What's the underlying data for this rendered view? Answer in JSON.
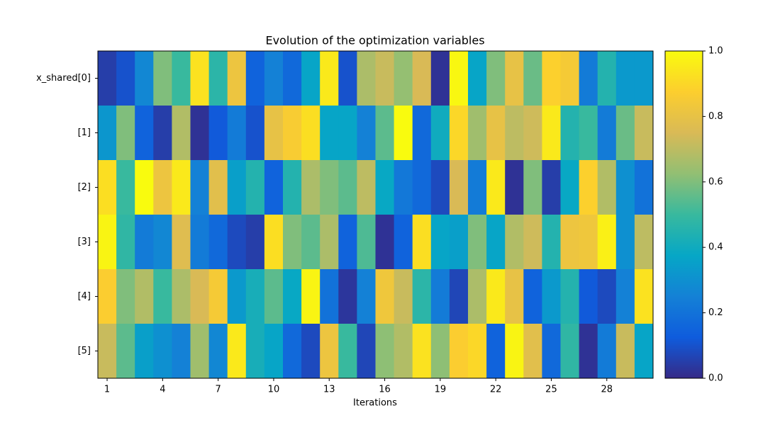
{
  "chart_data": {
    "type": "heatmap",
    "title": "Evolution of the optimization variables",
    "x_label": "Iterations",
    "x": [
      1,
      2,
      3,
      4,
      5,
      6,
      7,
      8,
      9,
      10,
      11,
      12,
      13,
      14,
      15,
      16,
      17,
      18,
      19,
      20,
      21,
      22,
      23,
      24,
      25,
      26,
      27,
      28,
      29,
      30
    ],
    "xlim": [
      0.5,
      30.5
    ],
    "xticks": [
      1,
      4,
      7,
      10,
      13,
      16,
      19,
      22,
      25,
      28
    ],
    "rows": [
      "x_shared[0]",
      "[1]",
      "[2]",
      "[3]",
      "[4]",
      "[5]"
    ],
    "values": [
      [
        0.05,
        0.1,
        0.27,
        0.6,
        0.5,
        0.93,
        0.47,
        0.82,
        0.15,
        0.25,
        0.17,
        0.37,
        0.95,
        0.1,
        0.67,
        0.72,
        0.63,
        0.75,
        0.02,
        0.99,
        0.37,
        0.6,
        0.8,
        0.57,
        0.88,
        0.85,
        0.23,
        0.45,
        0.33,
        0.33
      ],
      [
        0.32,
        0.6,
        0.15,
        0.05,
        0.68,
        0.02,
        0.12,
        0.23,
        0.1,
        0.8,
        0.86,
        0.92,
        0.37,
        0.37,
        0.25,
        0.55,
        1.0,
        0.17,
        0.4,
        0.9,
        0.65,
        0.8,
        0.7,
        0.73,
        0.95,
        0.45,
        0.5,
        0.23,
        0.57,
        0.72
      ],
      [
        0.92,
        0.5,
        1.0,
        0.82,
        0.95,
        0.25,
        0.78,
        0.35,
        0.45,
        0.15,
        0.45,
        0.67,
        0.6,
        0.55,
        0.7,
        0.38,
        0.22,
        0.17,
        0.08,
        0.75,
        0.23,
        0.95,
        0.02,
        0.6,
        0.05,
        0.38,
        0.88,
        0.68,
        0.3,
        0.2
      ],
      [
        0.98,
        0.48,
        0.23,
        0.27,
        0.77,
        0.23,
        0.17,
        0.08,
        0.05,
        0.92,
        0.6,
        0.55,
        0.67,
        0.15,
        0.53,
        0.02,
        0.15,
        0.92,
        0.37,
        0.35,
        0.6,
        0.37,
        0.68,
        0.73,
        0.45,
        0.82,
        0.83,
        0.97,
        0.3,
        0.7
      ],
      [
        0.87,
        0.6,
        0.68,
        0.5,
        0.67,
        0.75,
        0.85,
        0.33,
        0.42,
        0.55,
        0.38,
        0.98,
        0.2,
        0.03,
        0.25,
        0.83,
        0.72,
        0.47,
        0.23,
        0.07,
        0.67,
        0.95,
        0.8,
        0.15,
        0.33,
        0.45,
        0.12,
        0.08,
        0.25,
        0.93
      ],
      [
        0.72,
        0.55,
        0.35,
        0.3,
        0.25,
        0.65,
        0.27,
        0.95,
        0.42,
        0.37,
        0.17,
        0.08,
        0.82,
        0.5,
        0.07,
        0.62,
        0.68,
        0.93,
        0.62,
        0.87,
        0.9,
        0.15,
        0.98,
        0.78,
        0.17,
        0.48,
        0.02,
        0.23,
        0.72,
        0.37
      ]
    ],
    "colormap": [
      "#352a87",
      "#0f5cdd",
      "#1481d6",
      "#06a7c6",
      "#38b99e",
      "#92bf73",
      "#d9ba56",
      "#fcce2e",
      "#f9fb0e"
    ],
    "clim": [
      0,
      1
    ],
    "cticks": [
      {
        "value": 0,
        "label": "0.0"
      },
      {
        "value": 0.2,
        "label": "0.2"
      },
      {
        "value": 0.4,
        "label": "0.4"
      },
      {
        "value": 0.6,
        "label": "0.6"
      },
      {
        "value": 0.8,
        "label": "0.8"
      },
      {
        "value": 1,
        "label": "1.0"
      }
    ]
  }
}
